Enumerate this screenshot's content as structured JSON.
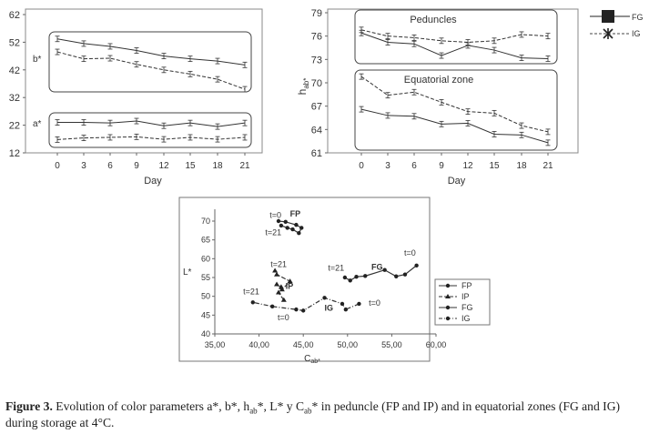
{
  "figure": {
    "caption_label": "Figure 3.",
    "caption_text": "Evolution of color parameters a*, b*, hab*, L* y Cab* in peduncle (FP and IP) and in equatorial zones (FG and IG) during storage at 4°C."
  },
  "legend_top": {
    "entries": [
      "FG",
      "IG"
    ]
  },
  "legend_bottom": {
    "entries": [
      "FP",
      "IP",
      "FG",
      "IG"
    ]
  },
  "chart_data": [
    {
      "type": "line",
      "xlabel": "Day",
      "ylabel": "",
      "x": [
        0,
        3,
        6,
        9,
        12,
        15,
        18,
        21
      ],
      "xticks": [
        "0",
        "3",
        "6",
        "9",
        "12",
        "15",
        "18",
        "21"
      ],
      "ylim": [
        12,
        62
      ],
      "yticks": [
        12,
        22,
        32,
        42,
        52,
        62
      ],
      "groups": [
        {
          "label": "b*",
          "series": [
            {
              "name": "FG",
              "values": [
                53.2,
                51.5,
                50.5,
                49.0,
                47.0,
                46.0,
                45.2,
                43.8
              ]
            },
            {
              "name": "IG",
              "values": [
                48.5,
                46.0,
                46.2,
                44.0,
                42.0,
                40.5,
                38.6,
                35.0
              ]
            }
          ]
        },
        {
          "label": "a*",
          "series": [
            {
              "name": "FG",
              "values": [
                23.0,
                23.0,
                22.8,
                23.5,
                21.8,
                22.8,
                21.5,
                22.8
              ]
            },
            {
              "name": "IG",
              "values": [
                16.8,
                17.4,
                17.6,
                17.8,
                16.9,
                17.6,
                16.9,
                17.6
              ]
            }
          ]
        }
      ]
    },
    {
      "type": "line",
      "xlabel": "Day",
      "ylabel": "hab*",
      "x": [
        0,
        3,
        6,
        9,
        12,
        15,
        18,
        21
      ],
      "xticks": [
        "0",
        "3",
        "6",
        "9",
        "12",
        "15",
        "18",
        "21"
      ],
      "ylim": [
        61,
        79
      ],
      "yticks": [
        61,
        64,
        67,
        70,
        73,
        76,
        79
      ],
      "groups": [
        {
          "label": "Peduncles",
          "series": [
            {
              "name": "FG",
              "values": [
                76.4,
                75.2,
                75.0,
                73.5,
                74.8,
                74.2,
                73.2,
                73.1
              ]
            },
            {
              "name": "IG",
              "values": [
                76.8,
                76.0,
                75.8,
                75.4,
                75.2,
                75.4,
                76.2,
                76.0
              ]
            }
          ]
        },
        {
          "label": "Equatorial zone",
          "series": [
            {
              "name": "FG",
              "values": [
                66.6,
                65.8,
                65.7,
                64.7,
                64.8,
                63.4,
                63.3,
                62.3
              ]
            },
            {
              "name": "IG",
              "values": [
                70.8,
                68.4,
                68.8,
                67.5,
                66.3,
                66.1,
                64.5,
                63.7
              ]
            }
          ]
        }
      ]
    },
    {
      "type": "scatter",
      "xlabel": "Cab*",
      "ylabel": "L*",
      "xlim": [
        35,
        60
      ],
      "ylim": [
        40,
        72
      ],
      "xticks": [
        "35,00",
        "40,00",
        "45,00",
        "50,00",
        "55,00",
        "60,00"
      ],
      "yticks": [
        "40",
        "45",
        "50",
        "55",
        "60",
        "65",
        "70"
      ],
      "annotations": [
        {
          "text": "t=0",
          "x": 41.2,
          "y": 70.8
        },
        {
          "text": "FP",
          "x": 43.5,
          "y": 71.2
        },
        {
          "text": "t=21",
          "x": 40.7,
          "y": 66.2
        },
        {
          "text": "t=21",
          "x": 41.3,
          "y": 57.8
        },
        {
          "text": "IP",
          "x": 43.0,
          "y": 52.0
        },
        {
          "text": "t=21",
          "x": 38.2,
          "y": 50.5
        },
        {
          "text": "t=0",
          "x": 42.1,
          "y": 43.6
        },
        {
          "text": "IG",
          "x": 47.4,
          "y": 46.2
        },
        {
          "text": "t=0",
          "x": 52.4,
          "y": 47.5
        },
        {
          "text": "t=21",
          "x": 47.8,
          "y": 56.8
        },
        {
          "text": "FG",
          "x": 52.7,
          "y": 57.0
        },
        {
          "text": "t=0",
          "x": 56.4,
          "y": 60.8
        }
      ],
      "series": [
        {
          "name": "FP",
          "x": [
            42.2,
            43.0,
            44.2,
            44.8,
            44.5,
            43.8,
            43.2,
            42.5
          ],
          "y": [
            70.0,
            69.8,
            69.0,
            68.2,
            66.8,
            67.8,
            68.2,
            68.8
          ]
        },
        {
          "name": "IP",
          "x": [
            42.8,
            42.2,
            42.5,
            42.0,
            42.6,
            43.5,
            42.0,
            41.8
          ],
          "y": [
            49.0,
            51.0,
            52.5,
            53.2,
            51.8,
            54.0,
            55.8,
            56.8
          ]
        },
        {
          "name": "FG",
          "x": [
            57.8,
            56.5,
            55.5,
            54.2,
            52.0,
            51.0,
            50.3,
            49.7
          ],
          "y": [
            58.2,
            55.8,
            55.3,
            57.0,
            55.4,
            55.2,
            54.2,
            55.0
          ]
        },
        {
          "name": "IG",
          "x": [
            51.3,
            49.8,
            49.4,
            47.4,
            45.0,
            44.2,
            41.5,
            39.3
          ],
          "y": [
            48.0,
            46.5,
            48.0,
            49.6,
            46.2,
            46.5,
            47.3,
            48.4
          ]
        }
      ]
    }
  ]
}
